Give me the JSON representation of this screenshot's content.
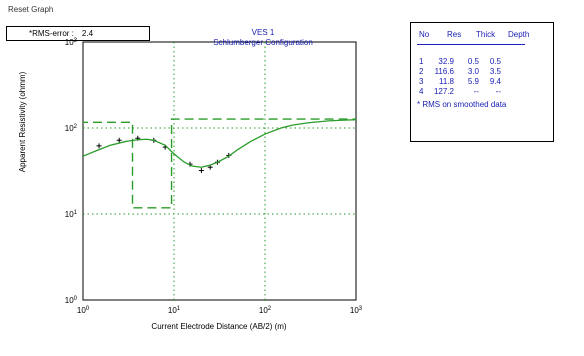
{
  "header": {
    "reset_label": "Reset Graph"
  },
  "rms_box": {
    "label": "*RMS-error :",
    "value": "2.4"
  },
  "colors": {
    "accent": "#1c22b5",
    "curve": "#2a9c2a",
    "model": "#2a9c2a",
    "grid": "#2a9c2a",
    "points": "#000000"
  },
  "table": {
    "headers": [
      "No",
      "Res",
      "Thick",
      "Depth"
    ],
    "rows": [
      [
        "1",
        "32.9",
        "0.5",
        "0.5"
      ],
      [
        "2",
        "116.6",
        "3.0",
        "3.5"
      ],
      [
        "3",
        "11.8",
        "5.9",
        "9.4"
      ],
      [
        "4",
        "127.2",
        "--",
        "--"
      ]
    ],
    "note": "* RMS on smoothed data"
  },
  "chart_data": {
    "type": "line",
    "title": "VES 1",
    "subtitle": "Schlumberger Configuration",
    "xlabel": "Current Electrode Distance (AB/2) (m)",
    "ylabel": "Apparent Resistivity (ohmm)",
    "xscale": "log",
    "yscale": "log",
    "xlim": [
      1,
      1000
    ],
    "ylim": [
      1,
      1000
    ],
    "grid": true,
    "x_ticks": [
      {
        "base": "10",
        "exp": "0",
        "value": 1
      },
      {
        "base": "10",
        "exp": "1",
        "value": 10
      },
      {
        "base": "10",
        "exp": "2",
        "value": 100
      },
      {
        "base": "10",
        "exp": "3",
        "value": 1000
      }
    ],
    "y_ticks": [
      {
        "base": "10",
        "exp": "0",
        "value": 1
      },
      {
        "base": "10",
        "exp": "1",
        "value": 10
      },
      {
        "base": "10",
        "exp": "2",
        "value": 100
      },
      {
        "base": "10",
        "exp": "3",
        "value": 1000
      }
    ],
    "series": [
      {
        "kind": "observed",
        "x": [
          1.5,
          2.5,
          4.0,
          6.0,
          8.0,
          15.0,
          20.0,
          25.0,
          30.0,
          40.0
        ],
        "y": [
          62,
          72,
          76,
          72,
          60,
          38,
          32,
          35,
          40,
          48
        ]
      },
      {
        "kind": "calculated",
        "x": [
          1.0,
          1.5,
          2.0,
          3.0,
          4.0,
          5.0,
          6.0,
          8.0,
          10.0,
          13.0,
          16.0,
          20.0,
          25.0,
          30.0,
          40.0,
          50.0,
          70.0,
          100.0,
          150.0,
          200.0,
          300.0,
          500.0,
          700.0,
          1000.0
        ],
        "y": [
          47,
          56,
          63,
          70,
          73,
          74,
          72,
          63,
          50,
          40,
          36,
          35,
          37,
          40,
          47,
          56,
          70,
          85,
          100,
          108,
          115,
          121,
          123,
          125
        ]
      },
      {
        "kind": "model",
        "x": [
          1.0,
          0.5,
          0.5,
          3.5,
          3.5,
          9.4,
          9.4,
          1000.0
        ],
        "y": [
          32.9,
          32.9,
          116.6,
          116.6,
          11.8,
          11.8,
          127.2,
          127.2
        ]
      }
    ]
  }
}
